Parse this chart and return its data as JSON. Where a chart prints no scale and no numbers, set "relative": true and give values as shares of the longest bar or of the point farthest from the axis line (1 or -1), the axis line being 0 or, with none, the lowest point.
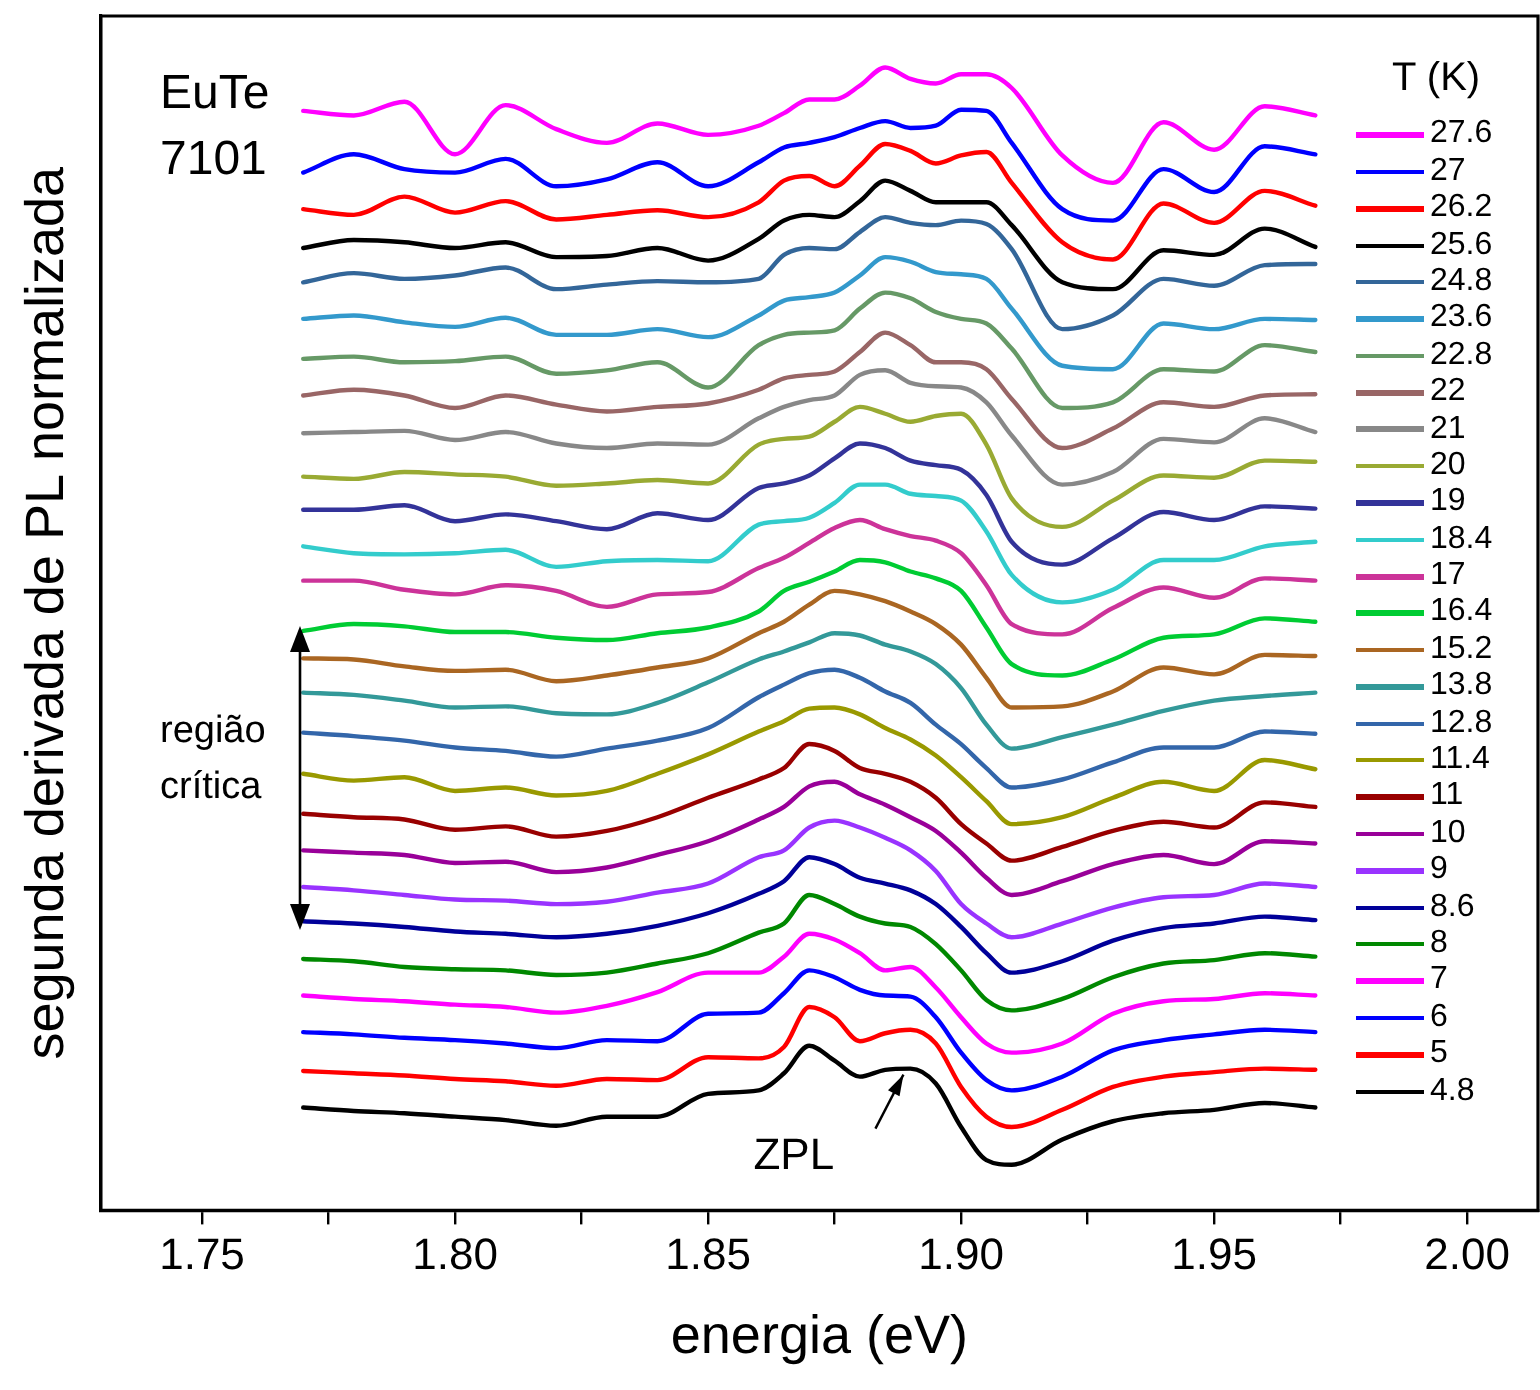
{
  "chart_data": {
    "type": "line",
    "relative": true,
    "xlabel": "energia (eV)",
    "ylabel": "segunda derivada de PL normalizada",
    "legend_title": "T (K)",
    "legend": "right",
    "xlim": [
      1.73,
      2.014
    ],
    "xticks": [
      1.75,
      {
        "value": 1.775,
        "label": null
      },
      "1.80",
      {
        "value": 1.825,
        "label": null
      },
      1.85,
      {
        "value": 1.875,
        "label": null
      },
      "1.90",
      {
        "value": 1.925,
        "label": null
      },
      1.95,
      {
        "value": 1.975,
        "label": null
      },
      "2.00"
    ],
    "annotations": [
      "EuTe\n7101",
      "região\ncrítica",
      {
        "text": "ZPL",
        "x": 1.889,
        "y": 0.124
      }
    ],
    "x": [
      1.77,
      1.78,
      1.79,
      1.8,
      1.81,
      1.82,
      1.83,
      1.84,
      1.85,
      1.86,
      1.865,
      1.87,
      1.875,
      1.88,
      1.885,
      1.89,
      1.895,
      1.9,
      1.905,
      1.91,
      1.92,
      1.93,
      1.94,
      1.95,
      1.96,
      1.97
    ],
    "series": [
      {
        "name": "27.6",
        "color": "#ff00ff",
        "values": [
          0.962,
          0.958,
          0.97,
          0.924,
          0.967,
          0.946,
          0.934,
          0.951,
          0.941,
          0.949,
          0.96,
          0.972,
          0.972,
          0.984,
          1.0,
          0.99,
          0.986,
          0.994,
          0.994,
          0.982,
          0.923,
          0.899,
          0.952,
          0.928,
          0.966,
          0.958
        ]
      },
      {
        "name": "27",
        "color": "#0000ff",
        "values": [
          0.908,
          0.924,
          0.911,
          0.908,
          0.92,
          0.896,
          0.902,
          0.917,
          0.896,
          0.917,
          0.93,
          0.934,
          0.939,
          0.947,
          0.953,
          0.947,
          0.949,
          0.963,
          0.962,
          0.934,
          0.876,
          0.866,
          0.911,
          0.891,
          0.931,
          0.924
        ]
      },
      {
        "name": "26.2",
        "color": "#ff0000",
        "values": [
          0.876,
          0.871,
          0.887,
          0.873,
          0.883,
          0.867,
          0.871,
          0.875,
          0.869,
          0.882,
          0.901,
          0.905,
          0.896,
          0.914,
          0.933,
          0.927,
          0.916,
          0.923,
          0.926,
          0.899,
          0.847,
          0.832,
          0.881,
          0.864,
          0.892,
          0.879
        ]
      },
      {
        "name": "25.6",
        "color": "#000000",
        "values": [
          0.842,
          0.849,
          0.847,
          0.842,
          0.847,
          0.834,
          0.835,
          0.842,
          0.831,
          0.85,
          0.866,
          0.871,
          0.869,
          0.883,
          0.901,
          0.892,
          0.882,
          0.882,
          0.882,
          0.862,
          0.812,
          0.806,
          0.84,
          0.836,
          0.859,
          0.843
        ]
      },
      {
        "name": "24.8",
        "color": "#336699",
        "values": [
          0.812,
          0.82,
          0.815,
          0.818,
          0.825,
          0.806,
          0.81,
          0.813,
          0.812,
          0.815,
          0.836,
          0.842,
          0.841,
          0.856,
          0.869,
          0.864,
          0.862,
          0.866,
          0.863,
          0.841,
          0.771,
          0.783,
          0.815,
          0.809,
          0.827,
          0.828
        ]
      },
      {
        "name": "23.6",
        "color": "#3399cc",
        "values": [
          0.78,
          0.783,
          0.777,
          0.773,
          0.781,
          0.766,
          0.766,
          0.771,
          0.764,
          0.783,
          0.796,
          0.799,
          0.803,
          0.818,
          0.834,
          0.83,
          0.821,
          0.819,
          0.815,
          0.789,
          0.739,
          0.736,
          0.776,
          0.771,
          0.78,
          0.779
        ]
      },
      {
        "name": "22.8",
        "color": "#669966",
        "values": [
          0.745,
          0.747,
          0.742,
          0.743,
          0.747,
          0.732,
          0.735,
          0.742,
          0.72,
          0.757,
          0.766,
          0.768,
          0.77,
          0.789,
          0.803,
          0.798,
          0.786,
          0.78,
          0.776,
          0.754,
          0.702,
          0.707,
          0.736,
          0.734,
          0.757,
          0.751
        ]
      },
      {
        "name": "22",
        "color": "#996666",
        "values": [
          0.713,
          0.718,
          0.713,
          0.702,
          0.713,
          0.705,
          0.699,
          0.703,
          0.706,
          0.718,
          0.728,
          0.731,
          0.734,
          0.751,
          0.768,
          0.757,
          0.742,
          0.742,
          0.736,
          0.71,
          0.667,
          0.684,
          0.707,
          0.703,
          0.713,
          0.714
        ]
      },
      {
        "name": "21",
        "color": "#888888",
        "values": [
          0.68,
          0.681,
          0.682,
          0.674,
          0.681,
          0.671,
          0.667,
          0.671,
          0.67,
          0.693,
          0.703,
          0.709,
          0.713,
          0.731,
          0.735,
          0.724,
          0.721,
          0.72,
          0.707,
          0.678,
          0.635,
          0.646,
          0.675,
          0.672,
          0.693,
          0.681
        ]
      },
      {
        "name": "20",
        "color": "#99aa33",
        "values": [
          0.642,
          0.64,
          0.646,
          0.644,
          0.642,
          0.634,
          0.636,
          0.639,
          0.636,
          0.67,
          0.675,
          0.677,
          0.69,
          0.703,
          0.697,
          0.69,
          0.695,
          0.697,
          0.67,
          0.623,
          0.598,
          0.621,
          0.643,
          0.641,
          0.656,
          0.655
        ]
      },
      {
        "name": "19",
        "color": "#333399",
        "values": [
          0.613,
          0.613,
          0.617,
          0.603,
          0.609,
          0.603,
          0.596,
          0.61,
          0.604,
          0.632,
          0.636,
          0.643,
          0.658,
          0.671,
          0.667,
          0.656,
          0.652,
          0.648,
          0.626,
          0.585,
          0.565,
          0.588,
          0.611,
          0.604,
          0.616,
          0.614
        ]
      },
      {
        "name": "18.4",
        "color": "#33cccc",
        "values": [
          0.581,
          0.575,
          0.574,
          0.575,
          0.578,
          0.563,
          0.568,
          0.569,
          0.568,
          0.6,
          0.603,
          0.606,
          0.619,
          0.635,
          0.635,
          0.627,
          0.625,
          0.621,
          0.594,
          0.556,
          0.532,
          0.543,
          0.569,
          0.569,
          0.581,
          0.585
        ]
      },
      {
        "name": "17",
        "color": "#cc3399",
        "values": [
          0.551,
          0.551,
          0.543,
          0.539,
          0.547,
          0.542,
          0.528,
          0.539,
          0.541,
          0.562,
          0.571,
          0.584,
          0.597,
          0.604,
          0.596,
          0.59,
          0.586,
          0.575,
          0.547,
          0.513,
          0.504,
          0.527,
          0.545,
          0.536,
          0.553,
          0.551
        ]
      },
      {
        "name": "16.4",
        "color": "#00cc33",
        "values": [
          0.507,
          0.513,
          0.511,
          0.506,
          0.506,
          0.501,
          0.499,
          0.505,
          0.51,
          0.524,
          0.542,
          0.55,
          0.559,
          0.569,
          0.567,
          0.559,
          0.553,
          0.542,
          0.51,
          0.478,
          0.468,
          0.482,
          0.501,
          0.504,
          0.518,
          0.515
        ]
      },
      {
        "name": "15.2",
        "color": "#aa6622",
        "values": [
          0.483,
          0.482,
          0.476,
          0.472,
          0.473,
          0.463,
          0.468,
          0.475,
          0.483,
          0.505,
          0.515,
          0.53,
          0.542,
          0.539,
          0.533,
          0.524,
          0.513,
          0.495,
          0.466,
          0.44,
          0.441,
          0.454,
          0.475,
          0.469,
          0.486,
          0.485
        ]
      },
      {
        "name": "13.8",
        "color": "#339999",
        "values": [
          0.453,
          0.451,
          0.446,
          0.44,
          0.441,
          0.435,
          0.434,
          0.444,
          0.462,
          0.482,
          0.489,
          0.497,
          0.505,
          0.503,
          0.495,
          0.489,
          0.478,
          0.457,
          0.425,
          0.404,
          0.414,
          0.425,
          0.437,
          0.446,
          0.45,
          0.453
        ]
      },
      {
        "name": "12.8",
        "color": "#3366aa",
        "values": [
          0.418,
          0.415,
          0.411,
          0.405,
          0.402,
          0.397,
          0.404,
          0.411,
          0.422,
          0.449,
          0.46,
          0.47,
          0.473,
          0.466,
          0.454,
          0.444,
          0.425,
          0.408,
          0.387,
          0.37,
          0.377,
          0.392,
          0.405,
          0.405,
          0.419,
          0.417
        ]
      },
      {
        "name": "11.4",
        "color": "#999900",
        "values": [
          0.382,
          0.376,
          0.379,
          0.367,
          0.37,
          0.363,
          0.367,
          0.382,
          0.399,
          0.419,
          0.428,
          0.439,
          0.44,
          0.434,
          0.422,
          0.412,
          0.398,
          0.379,
          0.358,
          0.338,
          0.344,
          0.361,
          0.375,
          0.367,
          0.394,
          0.386
        ]
      },
      {
        "name": "11",
        "color": "#990000",
        "values": [
          0.347,
          0.344,
          0.342,
          0.333,
          0.336,
          0.327,
          0.332,
          0.344,
          0.361,
          0.377,
          0.387,
          0.408,
          0.402,
          0.387,
          0.382,
          0.375,
          0.361,
          0.338,
          0.321,
          0.306,
          0.318,
          0.332,
          0.34,
          0.335,
          0.357,
          0.353
        ]
      },
      {
        "name": "10",
        "color": "#990099",
        "values": [
          0.315,
          0.313,
          0.311,
          0.304,
          0.305,
          0.296,
          0.3,
          0.311,
          0.323,
          0.342,
          0.353,
          0.371,
          0.375,
          0.364,
          0.355,
          0.344,
          0.332,
          0.313,
          0.291,
          0.276,
          0.288,
          0.303,
          0.311,
          0.303,
          0.323,
          0.321
        ]
      },
      {
        "name": "9",
        "color": "#9933ff",
        "values": [
          0.283,
          0.28,
          0.276,
          0.272,
          0.271,
          0.268,
          0.27,
          0.278,
          0.286,
          0.309,
          0.315,
          0.335,
          0.341,
          0.335,
          0.326,
          0.315,
          0.297,
          0.268,
          0.251,
          0.239,
          0.251,
          0.265,
          0.274,
          0.276,
          0.286,
          0.283
        ]
      },
      {
        "name": "8.6",
        "color": "#000099",
        "values": [
          0.253,
          0.251,
          0.248,
          0.244,
          0.242,
          0.239,
          0.242,
          0.249,
          0.26,
          0.277,
          0.288,
          0.309,
          0.303,
          0.291,
          0.286,
          0.28,
          0.268,
          0.248,
          0.225,
          0.208,
          0.218,
          0.236,
          0.247,
          0.251,
          0.257,
          0.254
        ]
      },
      {
        "name": "8",
        "color": "#008800",
        "values": [
          0.22,
          0.218,
          0.213,
          0.211,
          0.21,
          0.206,
          0.208,
          0.216,
          0.225,
          0.243,
          0.251,
          0.276,
          0.268,
          0.257,
          0.251,
          0.248,
          0.233,
          0.21,
          0.184,
          0.175,
          0.185,
          0.204,
          0.216,
          0.219,
          0.225,
          0.222
        ]
      },
      {
        "name": "7",
        "color": "#ff00ff",
        "values": [
          0.188,
          0.185,
          0.183,
          0.18,
          0.178,
          0.173,
          0.179,
          0.191,
          0.208,
          0.208,
          0.222,
          0.242,
          0.237,
          0.225,
          0.21,
          0.213,
          0.195,
          0.169,
          0.146,
          0.138,
          0.146,
          0.172,
          0.183,
          0.185,
          0.19,
          0.188
        ]
      },
      {
        "name": "6",
        "color": "#0000ff",
        "values": [
          0.156,
          0.154,
          0.151,
          0.149,
          0.146,
          0.142,
          0.149,
          0.148,
          0.172,
          0.173,
          0.19,
          0.21,
          0.204,
          0.193,
          0.188,
          0.187,
          0.169,
          0.138,
          0.114,
          0.105,
          0.117,
          0.14,
          0.149,
          0.154,
          0.158,
          0.156
        ]
      },
      {
        "name": "5",
        "color": "#ff0000",
        "values": [
          0.122,
          0.12,
          0.118,
          0.115,
          0.113,
          0.109,
          0.115,
          0.114,
          0.134,
          0.133,
          0.143,
          0.178,
          0.169,
          0.148,
          0.155,
          0.158,
          0.146,
          0.108,
          0.082,
          0.073,
          0.088,
          0.108,
          0.117,
          0.121,
          0.124,
          0.123
        ]
      },
      {
        "name": "4.8",
        "color": "#000000",
        "values": [
          0.09,
          0.087,
          0.085,
          0.082,
          0.079,
          0.074,
          0.082,
          0.082,
          0.102,
          0.105,
          0.12,
          0.144,
          0.131,
          0.117,
          0.123,
          0.124,
          0.111,
          0.073,
          0.044,
          0.04,
          0.062,
          0.078,
          0.085,
          0.088,
          0.094,
          0.09
        ]
      }
    ]
  }
}
